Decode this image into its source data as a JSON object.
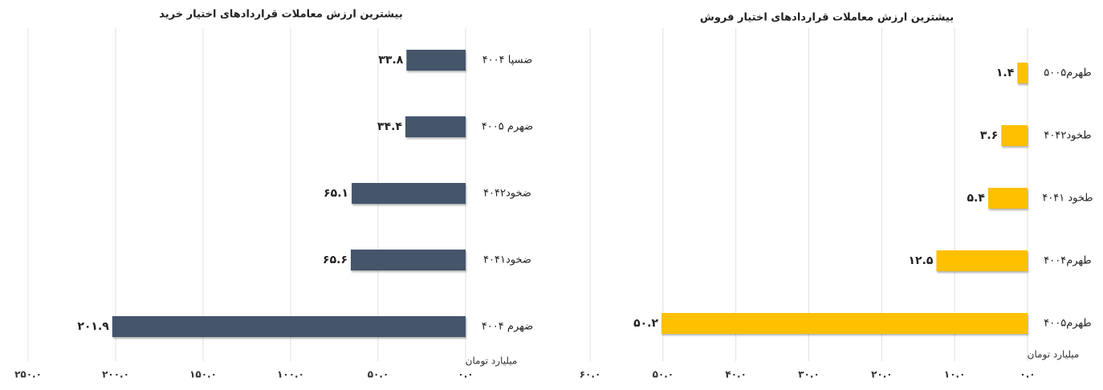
{
  "chart_data": [
    {
      "type": "bar",
      "orientation": "horizontal",
      "title": "بیشترین ارزش معاملات قراردادهای اختیار خرید",
      "x_label": "میلیارد تومان",
      "categories": [
        "ضسپا ۴۰۰۴",
        "ضهرم ۴۰۰۵",
        "ضخود۴۰۴۲",
        "ضخود۴۰۴۱",
        "ضهرم ۴۰۰۴"
      ],
      "values": [
        33.8,
        34.4,
        65.1,
        65.6,
        201.9
      ],
      "value_labels": [
        "۳۳.۸",
        "۳۴.۴",
        "۶۵.۱",
        "۶۵.۶",
        "۲۰۱.۹"
      ],
      "color": "#44546a",
      "reversed": true,
      "grid": true,
      "xlim": [
        0,
        250
      ],
      "xticks": [
        {
          "value": 0,
          "label": "۰.۰"
        },
        {
          "value": 50,
          "label": "۵۰.۰"
        },
        {
          "value": 100,
          "label": "۱۰۰.۰"
        },
        {
          "value": 150,
          "label": "۱۵۰.۰"
        },
        {
          "value": 200,
          "label": "۲۰۰.۰"
        },
        {
          "value": 250,
          "label": "۲۵۰.۰"
        }
      ]
    },
    {
      "type": "bar",
      "orientation": "horizontal",
      "title": "بیشترین ارزش معاملات قراردادهای اختیار فروش",
      "x_label": "میلیارد تومان",
      "categories": [
        "طهرم۵۰۰۵",
        "طخود۴۰۴۲",
        "طخود ۴۰۴۱",
        "طهرم۴۰۰۴",
        "طهرم۴۰۰۵"
      ],
      "values": [
        1.4,
        3.6,
        5.4,
        12.5,
        50.2
      ],
      "value_labels": [
        "۱.۴",
        "۳.۶",
        "۵.۴",
        "۱۲.۵",
        "۵۰.۲"
      ],
      "color": "#ffc000",
      "reversed": true,
      "grid": true,
      "xlim": [
        0,
        60
      ],
      "xticks": [
        {
          "value": 0,
          "label": "۰.۰"
        },
        {
          "value": 10,
          "label": "۱۰.۰"
        },
        {
          "value": 20,
          "label": "۲۰.۰"
        },
        {
          "value": 30,
          "label": "۳۰.۰"
        },
        {
          "value": 40,
          "label": "۴۰.۰"
        },
        {
          "value": 50,
          "label": "۵۰.۰"
        },
        {
          "value": 60,
          "label": "۶۰.۰"
        }
      ]
    }
  ]
}
